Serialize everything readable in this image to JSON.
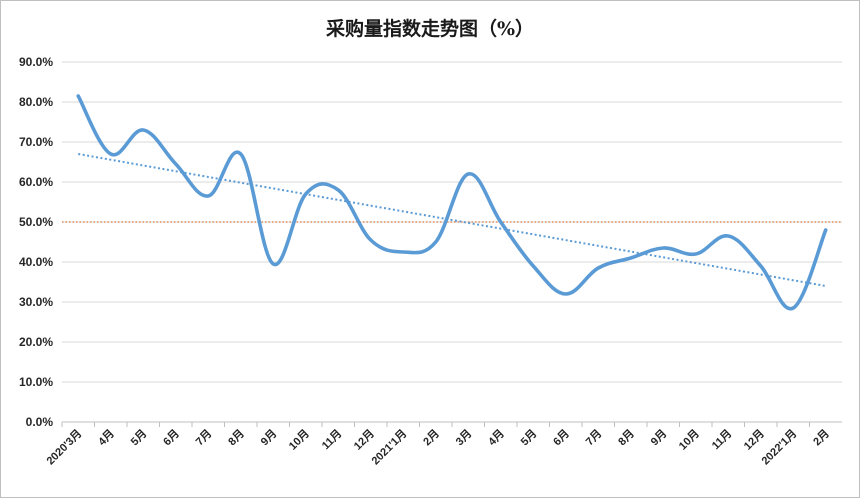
{
  "chart_data": {
    "type": "line",
    "title": "采购量指数走势图（%）",
    "xlabel": "",
    "ylabel": "",
    "categories": [
      "2020'3月",
      "4月",
      "5月",
      "6月",
      "7月",
      "8月",
      "9月",
      "10月",
      "11月",
      "12月",
      "2021'1月",
      "2月",
      "3月",
      "4月",
      "5月",
      "6月",
      "7月",
      "8月",
      "9月",
      "10月",
      "11月",
      "12月",
      "2022'1月",
      "2月"
    ],
    "series": [
      {
        "values": [
          81.5,
          67.0,
          73.0,
          64.5,
          56.5,
          67.0,
          39.5,
          57.0,
          58.0,
          45.5,
          42.5,
          45.0,
          62.0,
          50.0,
          39.0,
          32.0,
          38.5,
          41.0,
          43.5,
          42.0,
          46.5,
          39.0,
          28.5,
          48.0
        ],
        "color": "#5b9bd5"
      }
    ],
    "reference_line": {
      "value": 50.0,
      "color": "#e07b39"
    },
    "trendline": {
      "start": 67.0,
      "end": 34.0,
      "color": "#5b9bd5"
    },
    "ylim": [
      0,
      90
    ],
    "yticks": [
      "0.0%",
      "10.0%",
      "20.0%",
      "30.0%",
      "40.0%",
      "50.0%",
      "60.0%",
      "70.0%",
      "80.0%",
      "90.0%"
    ],
    "grid": true,
    "legend": "none"
  }
}
